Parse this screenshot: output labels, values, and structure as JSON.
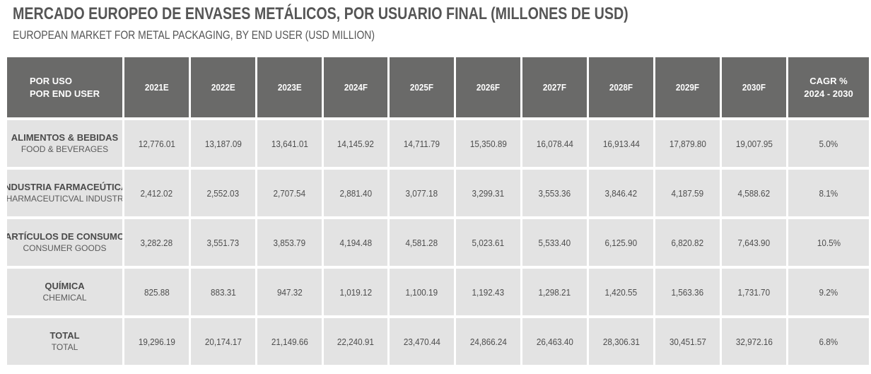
{
  "title": "MERCADO EUROPEO DE ENVASES METÁLICOS, POR USUARIO FINAL (MILLONES DE USD)",
  "subtitle": "EUROPEAN MARKET FOR METAL PACKAGING, BY END USER (USD MILLION)",
  "table": {
    "header": {
      "label_es": "POR USO",
      "label_en": "POR END USER",
      "years": [
        "2021E",
        "2022E",
        "2023E",
        "2024F",
        "2025F",
        "2026F",
        "2027F",
        "2028F",
        "2029F",
        "2030F"
      ],
      "cagr_line1": "CAGR %",
      "cagr_line2": "2024 - 2030"
    },
    "rows": [
      {
        "label_es": "ALIMENTOS & BEBIDAS",
        "label_en": "FOOD & BEVERAGES",
        "values": [
          "12,776.01",
          "13,187.09",
          "13,641.01",
          "14,145.92",
          "14,711.79",
          "15,350.89",
          "16,078.44",
          "16,913.44",
          "17,879.80",
          "19,007.95"
        ],
        "cagr": "5.0%"
      },
      {
        "label_es": "INDUSTRIA FARMACEÚTICA",
        "label_en": "PHARMACEUTICVAL INDUSTRY",
        "values": [
          "2,412.02",
          "2,552.03",
          "2,707.54",
          "2,881.40",
          "3,077.18",
          "3,299.31",
          "3,553.36",
          "3,846.42",
          "4,187.59",
          "4,588.62"
        ],
        "cagr": "8.1%"
      },
      {
        "label_es": "ARTÍCULOS DE CONSUMO",
        "label_en": "CONSUMER GOODS",
        "values": [
          "3,282.28",
          "3,551.73",
          "3,853.79",
          "4,194.48",
          "4,581.28",
          "5,023.61",
          "5,533.40",
          "6,125.90",
          "6,820.82",
          "7,643.90"
        ],
        "cagr": "10.5%"
      },
      {
        "label_es": "QUÍMICA",
        "label_en": "CHEMICAL",
        "values": [
          "825.88",
          "883.31",
          "947.32",
          "1,019.12",
          "1,100.19",
          "1,192.43",
          "1,298.21",
          "1,420.55",
          "1,563.36",
          "1,731.70"
        ],
        "cagr": "9.2%"
      },
      {
        "label_es": "TOTAL",
        "label_en": "TOTAL",
        "values": [
          "19,296.19",
          "20,174.17",
          "21,149.66",
          "22,240.91",
          "23,470.44",
          "24,866.24",
          "26,463.40",
          "28,306.31",
          "30,451.57",
          "32,972.16"
        ],
        "cagr": "6.8%"
      }
    ]
  }
}
